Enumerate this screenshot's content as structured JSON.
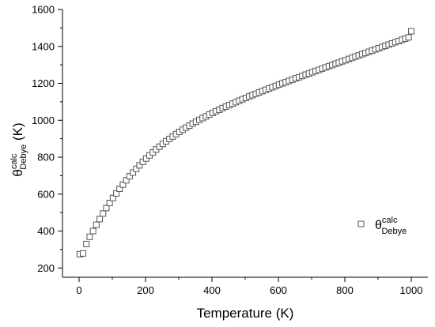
{
  "chart_data": {
    "type": "scatter",
    "xlabel": "Temperature (K)",
    "ylabel": {
      "symbol": "θ",
      "superscript": "calc",
      "subscript": "Debye",
      "unit": " (K)"
    },
    "xlim": [
      -50,
      1050
    ],
    "ylim": [
      150,
      1600
    ],
    "x_ticks": [
      0,
      200,
      400,
      600,
      800,
      1000
    ],
    "y_ticks": [
      200,
      400,
      600,
      800,
      1000,
      1200,
      1400,
      1600
    ],
    "x_minor_step": 100,
    "y_minor_step": 100,
    "grid": false,
    "legend_position": "lower-right",
    "series": [
      {
        "name": "θ_Debye^calc",
        "marker": "open-square",
        "color": "#555555",
        "x": [
          2,
          12,
          22,
          32,
          42,
          52,
          62,
          72,
          82,
          92,
          102,
          112,
          122,
          132,
          142,
          152,
          162,
          172,
          182,
          192,
          202,
          212,
          222,
          232,
          242,
          252,
          262,
          272,
          282,
          292,
          302,
          312,
          322,
          332,
          342,
          352,
          362,
          372,
          382,
          392,
          402,
          412,
          422,
          432,
          442,
          452,
          462,
          472,
          482,
          492,
          502,
          512,
          522,
          532,
          542,
          552,
          562,
          572,
          582,
          592,
          602,
          612,
          622,
          632,
          642,
          652,
          662,
          672,
          682,
          692,
          702,
          712,
          722,
          732,
          742,
          752,
          762,
          772,
          782,
          792,
          802,
          812,
          822,
          832,
          842,
          852,
          862,
          872,
          882,
          892,
          902,
          912,
          922,
          932,
          942,
          952,
          962,
          972,
          982,
          992,
          1000
        ],
        "y": [
          275,
          279,
          330,
          369,
          400,
          434,
          465,
          495,
          525,
          552,
          579,
          604,
          629,
          652,
          675,
          697,
          717,
          737,
          756,
          775,
          793,
          810,
          826,
          842,
          857,
          872,
          886,
          899,
          912,
          925,
          937,
          949,
          960,
          971,
          982,
          992,
          1002,
          1012,
          1021,
          1031,
          1040,
          1049,
          1057,
          1066,
          1074,
          1082,
          1090,
          1098,
          1106,
          1114,
          1121,
          1129,
          1136,
          1143,
          1151,
          1158,
          1165,
          1172,
          1179,
          1186,
          1193,
          1200,
          1206,
          1213,
          1220,
          1227,
          1233,
          1240,
          1247,
          1253,
          1260,
          1267,
          1273,
          1280,
          1286,
          1293,
          1299,
          1306,
          1312,
          1319,
          1325,
          1332,
          1338,
          1345,
          1351,
          1358,
          1364,
          1371,
          1377,
          1384,
          1390,
          1397,
          1403,
          1410,
          1416,
          1423,
          1429,
          1436,
          1442,
          1449,
          1482
        ]
      }
    ]
  }
}
